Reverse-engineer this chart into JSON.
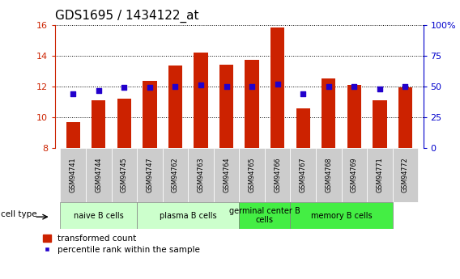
{
  "title": "GDS1695 / 1434122_at",
  "samples": [
    "GSM94741",
    "GSM94744",
    "GSM94745",
    "GSM94747",
    "GSM94762",
    "GSM94763",
    "GSM94764",
    "GSM94765",
    "GSM94766",
    "GSM94767",
    "GSM94768",
    "GSM94769",
    "GSM94771",
    "GSM94772"
  ],
  "transformed_count": [
    9.7,
    11.1,
    11.2,
    12.35,
    13.35,
    14.2,
    13.4,
    13.75,
    15.85,
    10.6,
    12.5,
    12.1,
    11.1,
    11.95
  ],
  "percentile_rank": [
    44,
    47,
    49,
    49,
    50,
    51,
    50,
    50,
    52,
    44,
    50,
    50,
    48,
    50
  ],
  "ylim_left": [
    8,
    16
  ],
  "ylim_right": [
    0,
    100
  ],
  "yticks_left": [
    8,
    10,
    12,
    14,
    16
  ],
  "yticks_right": [
    0,
    25,
    50,
    75,
    100
  ],
  "bar_color": "#cc2200",
  "dot_color": "#2200cc",
  "group_starts": [
    0,
    3,
    7,
    9
  ],
  "group_ends": [
    3,
    7,
    9,
    13
  ],
  "group_labels": [
    "naive B cells",
    "plasma B cells",
    "germinal center B\ncells",
    "memory B cells"
  ],
  "group_light_color": "#ccffcc",
  "group_bright_color": "#44ee44",
  "cell_type_label": "cell type",
  "legend_bar_label": "transformed count",
  "legend_dot_label": "percentile rank within the sample",
  "right_axis_color": "#0000cc",
  "left_axis_color": "#cc2200",
  "xticklabel_bg": "#cccccc"
}
